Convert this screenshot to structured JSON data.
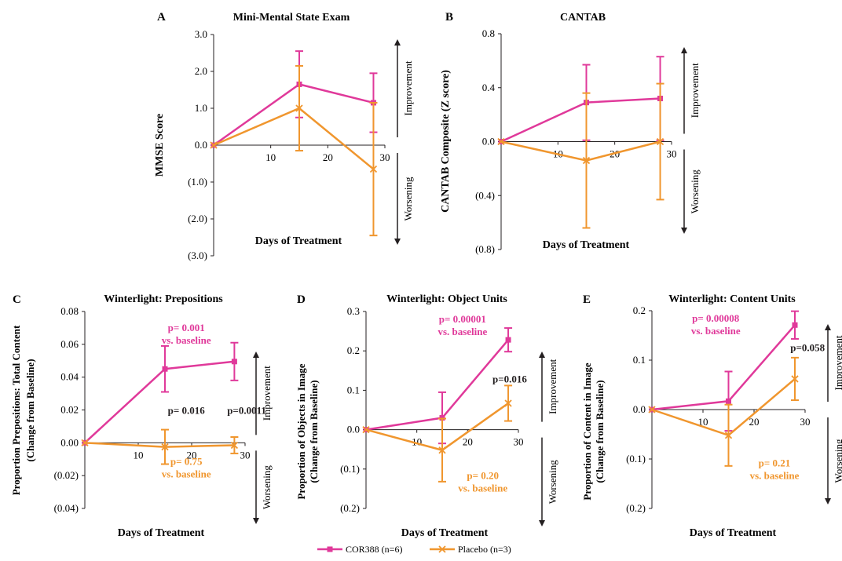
{
  "colors": {
    "cor388": "#e0399a",
    "placebo": "#f0962e",
    "axis": "#231f20"
  },
  "legend": [
    {
      "label": "COR388 (n=6)",
      "marker": "square",
      "color": "#e0399a"
    },
    {
      "label": "Placebo (n=3)",
      "marker": "x",
      "color": "#f0962e"
    }
  ],
  "chart_data": [
    {
      "panel": "A",
      "type": "line",
      "title": "Mini-Mental State Exam",
      "xlabel": "Days of Treatment",
      "ylabel": [
        "MMSE Score"
      ],
      "xlim": [
        0,
        30
      ],
      "ylim": [
        -3,
        3
      ],
      "xticks": [
        10,
        20,
        30
      ],
      "xtick_labels": [
        "10",
        "20",
        "30"
      ],
      "yticks": [
        3,
        2,
        1,
        0,
        -1,
        -2,
        -3
      ],
      "ytick_labels": [
        "3.0",
        "2.0",
        "1.0",
        "0.0",
        "(1.0)",
        "(2.0)",
        "(3.0)"
      ],
      "direction_labels": {
        "up": "Improvement",
        "down": "Worsening"
      },
      "series": [
        {
          "name": "COR388 (n=6)",
          "x": [
            0,
            15,
            28
          ],
          "y": [
            0,
            1.65,
            1.15
          ],
          "err": [
            0,
            0.9,
            0.8
          ]
        },
        {
          "name": "Placebo (n=3)",
          "x": [
            0,
            15,
            28
          ],
          "y": [
            0,
            1.0,
            -0.65
          ],
          "err": [
            0,
            1.15,
            1.8
          ]
        }
      ],
      "annotations": []
    },
    {
      "panel": "B",
      "type": "line",
      "title": "CANTAB",
      "xlabel": "Days of Treatment",
      "ylabel": [
        "CANTAB Composite (Z score)"
      ],
      "xlim": [
        0,
        30
      ],
      "ylim": [
        -0.8,
        0.8
      ],
      "xticks": [
        10,
        20,
        30
      ],
      "xtick_labels": [
        "10",
        "20",
        "30"
      ],
      "yticks": [
        0.8,
        0.4,
        0,
        -0.4,
        -0.8
      ],
      "ytick_labels": [
        "0.8",
        "0.4",
        "0.0",
        "(0.4)",
        "(0.8)"
      ],
      "direction_labels": {
        "up": "Improvement",
        "down": "Worsening"
      },
      "series": [
        {
          "name": "COR388 (n=6)",
          "x": [
            0,
            15,
            28
          ],
          "y": [
            0,
            0.29,
            0.32
          ],
          "err": [
            0,
            0.28,
            0.31
          ]
        },
        {
          "name": "Placebo (n=3)",
          "x": [
            0,
            15,
            28
          ],
          "y": [
            0,
            -0.14,
            0.0
          ],
          "err": [
            0,
            0.5,
            0.43
          ]
        }
      ],
      "annotations": []
    },
    {
      "panel": "C",
      "type": "line",
      "title": "Winterlight: Prepositions",
      "xlabel": "Days of Treatment",
      "ylabel": [
        "Proportion Prepositions: Total Content",
        "(Change from Baseline)"
      ],
      "xlim": [
        0,
        30
      ],
      "ylim": [
        -0.04,
        0.08
      ],
      "xticks": [
        10,
        20,
        30
      ],
      "xtick_labels": [
        "10",
        "20",
        "30"
      ],
      "yticks": [
        0.08,
        0.06,
        0.04,
        0.02,
        0,
        -0.02,
        -0.04
      ],
      "ytick_labels": [
        "0.08",
        "0.06",
        "0.04",
        "0.02",
        "0.00",
        "(0.02)",
        "(0.04)"
      ],
      "direction_labels": {
        "up": "Improvement",
        "down": "Worsening"
      },
      "series": [
        {
          "name": "COR388 (n=6)",
          "x": [
            0,
            15,
            28
          ],
          "y": [
            0,
            0.045,
            0.0495
          ],
          "err": [
            0,
            0.014,
            0.0115
          ]
        },
        {
          "name": "Placebo (n=3)",
          "x": [
            0,
            15,
            28
          ],
          "y": [
            0,
            -0.0025,
            -0.0015
          ],
          "err": [
            0,
            0.0105,
            0.005
          ]
        }
      ],
      "annotations": [
        {
          "lines": [
            "p= 0.001",
            "vs. baseline"
          ],
          "color": "cor388",
          "x": 19,
          "y": 0.068
        },
        {
          "lines": [
            "p= 0.016"
          ],
          "color": "axis",
          "x": 19,
          "y": 0.0175
        },
        {
          "lines": [
            "p=0.0011"
          ],
          "color": "axis",
          "x": 30.3,
          "y": 0.0175
        },
        {
          "lines": [
            "p= 0.75",
            "vs. baseline"
          ],
          "color": "placebo",
          "x": 19,
          "y": -0.0135
        }
      ]
    },
    {
      "panel": "D",
      "type": "line",
      "title": "Winterlight: Object Units",
      "xlabel": "Days of Treatment",
      "ylabel": [
        "Proportion of Objects in Image",
        "(Change from Baseline)"
      ],
      "xlim": [
        0,
        30
      ],
      "ylim": [
        -0.2,
        0.3
      ],
      "xticks": [
        10,
        20,
        30
      ],
      "xtick_labels": [
        "10",
        "20",
        "30"
      ],
      "yticks": [
        0.3,
        0.2,
        0.1,
        0,
        -0.1,
        -0.2
      ],
      "ytick_labels": [
        "0.3",
        "0.2",
        "0.1",
        "0.0",
        "(0.1)",
        "(0.2)"
      ],
      "direction_labels": {
        "up": "Improvement",
        "down": "Worsening"
      },
      "series": [
        {
          "name": "COR388 (n=6)",
          "x": [
            0,
            15,
            28
          ],
          "y": [
            0,
            0.03,
            0.228
          ],
          "err": [
            0,
            0.065,
            0.03
          ]
        },
        {
          "name": "Placebo (n=3)",
          "x": [
            0,
            15,
            28
          ],
          "y": [
            0,
            -0.052,
            0.067
          ],
          "err": [
            0,
            0.08,
            0.045
          ]
        }
      ],
      "annotations": [
        {
          "lines": [
            "p= 0.00001",
            "vs. baseline"
          ],
          "color": "cor388",
          "x": 19,
          "y": 0.272
        },
        {
          "lines": [
            "p=0.016"
          ],
          "color": "axis",
          "x": 28.3,
          "y": 0.12
        },
        {
          "lines": [
            "p= 0.20",
            "vs. baseline"
          ],
          "color": "placebo",
          "x": 23,
          "y": -0.125
        }
      ]
    },
    {
      "panel": "E",
      "type": "line",
      "title": "Winterlight: Content Units",
      "xlabel": "Days of Treatment",
      "ylabel": [
        "Proportion of Content in Image",
        "(Change from Baseline)"
      ],
      "xlim": [
        0,
        30
      ],
      "ylim": [
        -0.2,
        0.2
      ],
      "xticks": [
        10,
        20,
        30
      ],
      "xtick_labels": [
        "10",
        "20",
        "30"
      ],
      "yticks": [
        0.2,
        0.1,
        0,
        -0.1,
        -0.2
      ],
      "ytick_labels": [
        "0.2",
        "0.1",
        "0.0",
        "(0.1)",
        "(0.2)"
      ],
      "direction_labels": {
        "up": "Improvement",
        "down": "Worsening"
      },
      "series": [
        {
          "name": "COR388 (n=6)",
          "x": [
            0,
            15,
            28
          ],
          "y": [
            0,
            0.017,
            0.171
          ],
          "err": [
            0,
            0.06,
            0.028
          ]
        },
        {
          "name": "Placebo (n=3)",
          "x": [
            0,
            15,
            28
          ],
          "y": [
            0,
            -0.052,
            0.062
          ],
          "err": [
            0,
            0.062,
            0.043
          ]
        }
      ],
      "annotations": [
        {
          "lines": [
            "p= 0.00008",
            "vs. baseline"
          ],
          "color": "cor388",
          "x": 12.5,
          "y": 0.178
        },
        {
          "lines": [
            "p=0.058"
          ],
          "color": "axis",
          "x": 30.5,
          "y": 0.118
        },
        {
          "lines": [
            "p= 0.21",
            "vs. baseline"
          ],
          "color": "placebo",
          "x": 24,
          "y": -0.115
        }
      ]
    }
  ]
}
